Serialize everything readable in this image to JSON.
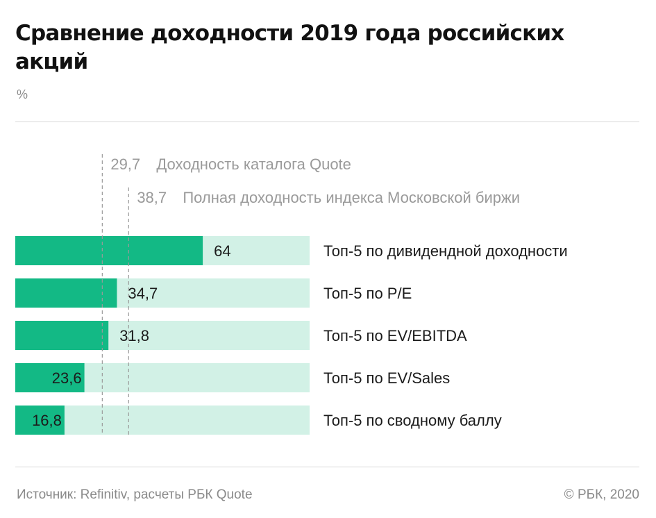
{
  "title": "Сравнение доходности 2019 года российских акций",
  "unit": "%",
  "source": "Источник: Refinitiv, расчеты РБК Quote",
  "copyright": "© РБК, 2020",
  "colors": {
    "bar": "#13b985",
    "track": "#d2f1e6",
    "reference_line": "#9a9a9a",
    "reference_text": "#9a9a9a"
  },
  "chart_data": {
    "type": "bar",
    "orientation": "horizontal",
    "categories": [
      "Топ-5 по дивидендной доходности",
      "Топ-5 по P/E",
      "Топ-5 по EV/EBITDA",
      "Топ-5 по EV/Sales",
      "Топ-5 по сводному баллу"
    ],
    "values": [
      64,
      34.7,
      31.8,
      23.6,
      16.8
    ],
    "value_labels": [
      "64",
      "34,7",
      "31,8",
      "23,6",
      "16,8"
    ],
    "xlim": [
      0,
      100
    ],
    "reference_lines": [
      {
        "value": 29.7,
        "value_label": "29,7",
        "label": "Доходность каталога Quote"
      },
      {
        "value": 38.7,
        "value_label": "38,7",
        "label": "Полная доходность индекса Московской биржи"
      }
    ],
    "grid": false,
    "legend": "none"
  }
}
